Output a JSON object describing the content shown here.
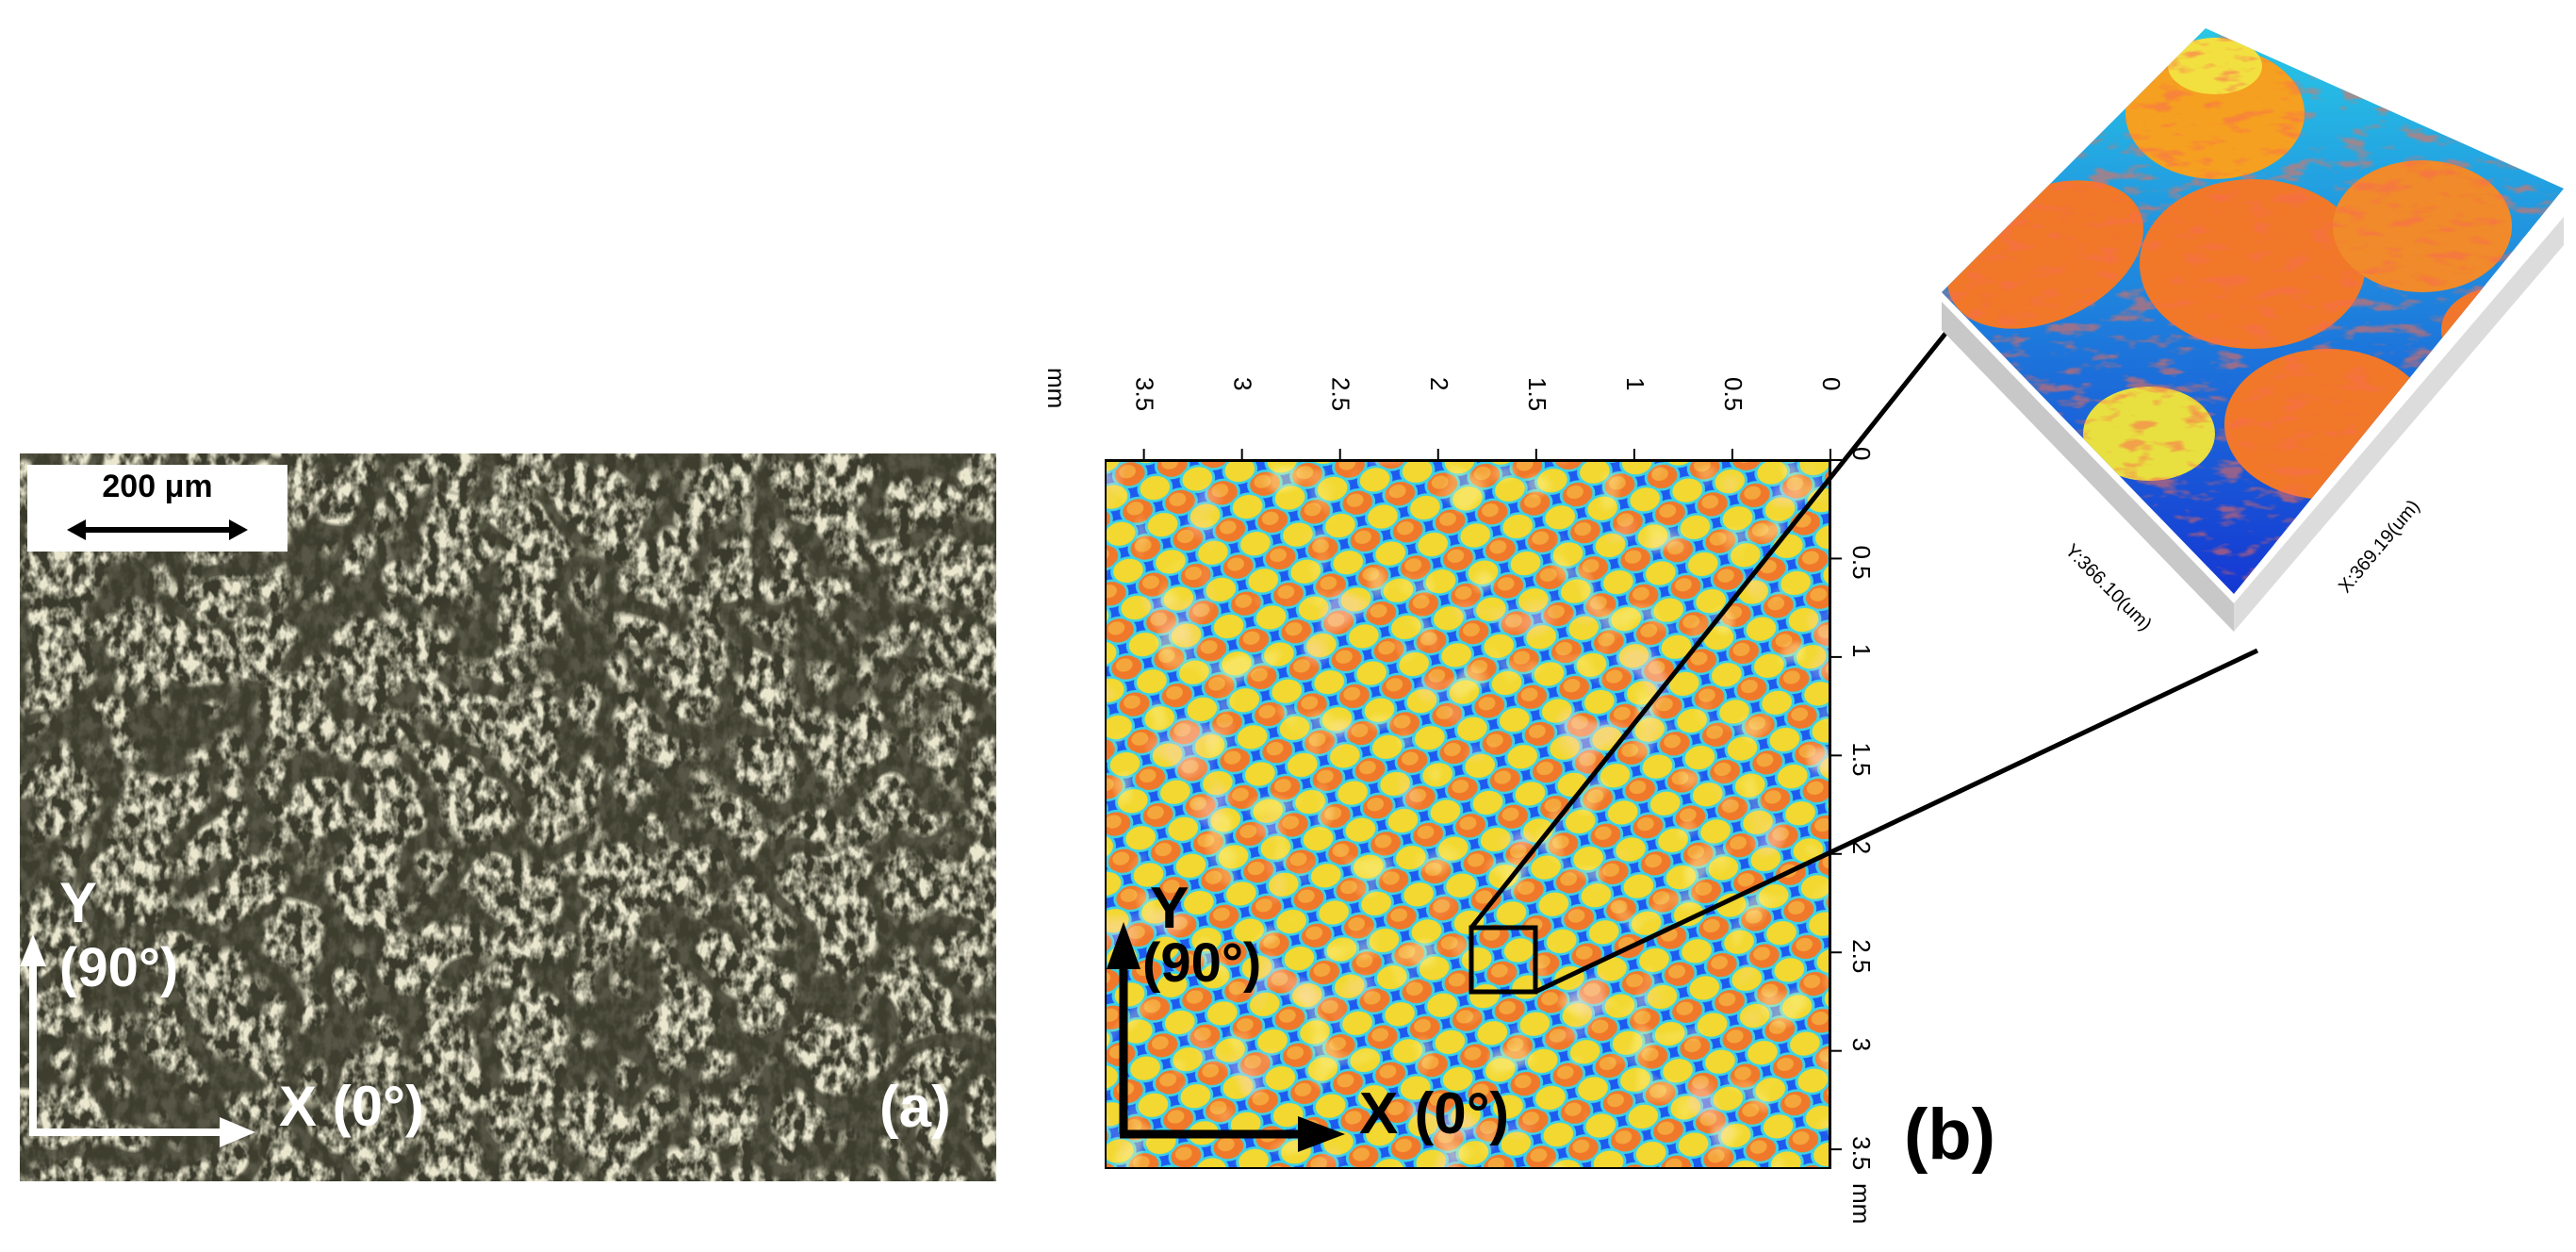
{
  "panel_a": {
    "scale_bar": "200 μm",
    "axis_y": "Y",
    "axis_y_angle": "(90°)",
    "axis_x": "X (0°)",
    "panel_label": "(a)"
  },
  "panel_b": {
    "unit_top": "mm",
    "unit_right": "mm",
    "top_ticks": [
      "3.5",
      "3",
      "2.5",
      "2",
      "1.5",
      "1",
      "0.5",
      "0"
    ],
    "right_ticks": [
      "0",
      "0.5",
      "1",
      "1.5",
      "2",
      "2.5",
      "3",
      "3.5"
    ],
    "axis_y": "Y",
    "axis_y_angle": "(90°)",
    "axis_x": "X (0°)",
    "panel_label": "(b)"
  },
  "inset_3d": {
    "label_y": "Y:366.10(um)",
    "label_x": "X:369.19(um)"
  },
  "colors": {
    "orange": "#f07828",
    "yellow": "#f5e630",
    "blue": "#1440dc",
    "cyan": "#28c8e0",
    "red": "#d21e14"
  }
}
